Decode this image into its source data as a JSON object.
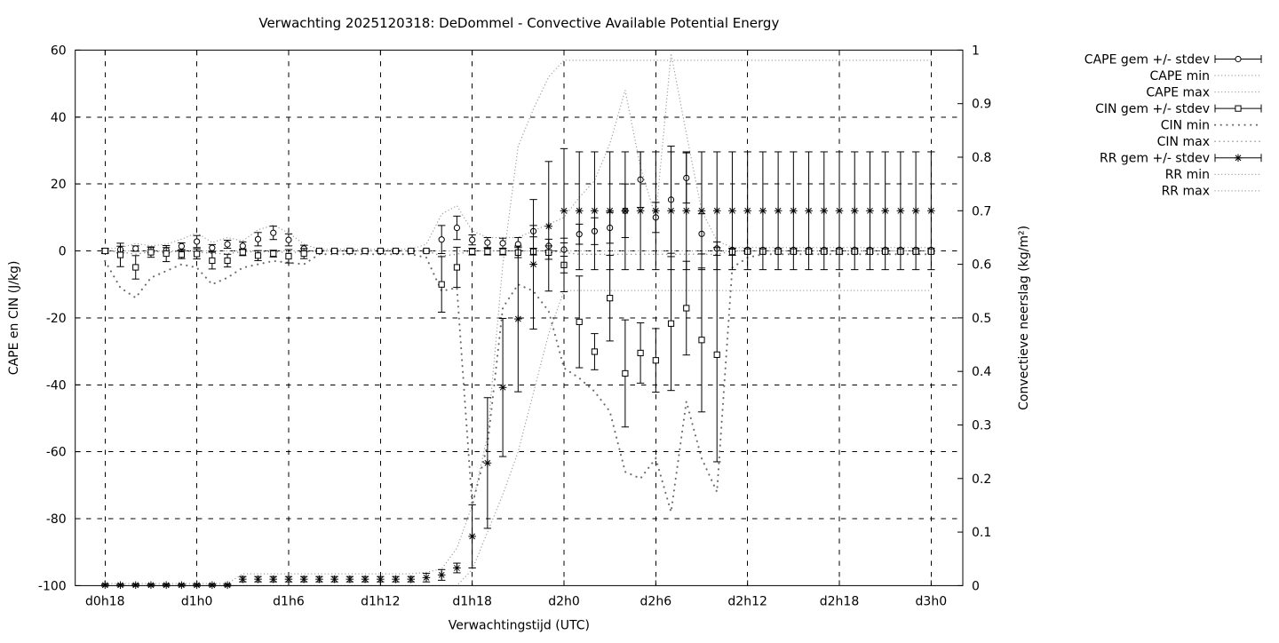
{
  "title": "Verwachting 2025120318: DeDommel - Convective Available Potential Energy",
  "chart_data": {
    "type": "line",
    "subtype": "errorbars-with-minmax-envelopes",
    "title": "Verwachting 2025120318: DeDommel - Convective Available Potential Energy",
    "xlabel": "Verwachtingstijd (UTC)",
    "ylabel_left": "CAPE en CIN (J/kg)",
    "ylabel_right": "Convectieve neerslag (kg/m²)",
    "x_tick_labels": [
      "d0h18",
      "d1h0",
      "d1h6",
      "d1h12",
      "d1h18",
      "d2h0",
      "d2h6",
      "d2h12",
      "d2h18",
      "d3h0"
    ],
    "x_tick_hours": [
      0,
      6,
      12,
      18,
      24,
      30,
      36,
      42,
      48,
      54
    ],
    "x_range_hours": [
      -1.95,
      56.07
    ],
    "ylim_left": [
      -100,
      60
    ],
    "ylim_right": [
      0,
      1
    ],
    "y_ticks_left": [
      "60",
      "40",
      "20",
      "0",
      "-20",
      "-40",
      "-60",
      "-80",
      "-100"
    ],
    "y_tick_values_left": [
      60,
      40,
      20,
      0,
      -20,
      -40,
      -60,
      -80,
      -100
    ],
    "y_ticks_right": [
      "1",
      "0.9",
      "0.8",
      "0.7",
      "0.6",
      "0.5",
      "0.4",
      "0.3",
      "0.2",
      "0.1",
      "0"
    ],
    "y_tick_values_right": [
      1,
      0.9,
      0.8,
      0.7,
      0.6,
      0.5,
      0.4,
      0.3,
      0.2,
      0.1,
      0
    ],
    "grid": true,
    "legend_position": "outside-right-top",
    "x_hours": [
      0,
      1,
      2,
      3,
      4,
      5,
      6,
      7,
      8,
      9,
      10,
      11,
      12,
      13,
      14,
      15,
      16,
      17,
      18,
      19,
      20,
      21,
      22,
      23,
      24,
      25,
      26,
      27,
      28,
      29,
      30,
      31,
      32,
      33,
      34,
      35,
      36,
      37,
      38,
      39,
      40,
      41,
      42,
      43,
      44,
      45,
      46,
      47,
      48,
      49,
      50,
      51,
      52,
      53,
      54
    ],
    "series": [
      {
        "name": "CAPE gem +/- stdev",
        "axis": "left",
        "style": "errorbar",
        "marker": "circle",
        "mean": [
          0.0,
          0.4,
          0.7,
          0.4,
          0.2,
          1.4,
          2.8,
          0.9,
          2.0,
          1.5,
          3.5,
          5.4,
          3.3,
          0.7,
          0.0,
          0.0,
          0.0,
          0.0,
          0.0,
          0.0,
          0.0,
          0.0,
          3.4,
          6.9,
          3.3,
          2.5,
          2.3,
          2.0,
          5.9,
          1.5,
          0.4,
          5.0,
          5.9,
          6.9,
          12.0,
          21.3,
          10.0,
          15.3,
          21.8,
          5.1,
          0.7,
          0.3,
          0.3,
          0.3,
          0.3,
          0.3,
          0.3,
          0.3,
          0.3,
          0.3,
          0.3,
          0.3,
          0.3,
          0.3,
          0.3
        ],
        "stdev": [
          0.5,
          1.0,
          0.8,
          0.8,
          0.8,
          1.0,
          1.8,
          1.0,
          1.2,
          1.2,
          2.0,
          2.0,
          1.8,
          1.0,
          0.2,
          0.2,
          0.2,
          0.2,
          0.2,
          0.2,
          0.2,
          0.3,
          4.2,
          3.5,
          1.5,
          1.5,
          1.5,
          2.0,
          1.7,
          2.0,
          2.0,
          3.0,
          4.0,
          4.6,
          8.0,
          8.3,
          4.5,
          16.0,
          7.5,
          6.0,
          2.0,
          0.5,
          0.5,
          0.5,
          0.5,
          0.5,
          0.5,
          0.5,
          0.5,
          0.5,
          0.5,
          0.5,
          0.5,
          0.5,
          0.5
        ]
      },
      {
        "name": "CAPE min",
        "axis": "left",
        "style": "dotted-fine",
        "values": [
          0,
          0,
          0,
          0,
          0,
          0,
          0,
          0,
          0,
          0,
          0,
          0,
          0,
          0,
          0,
          0,
          0,
          0,
          0,
          0,
          0,
          0,
          0,
          0,
          0,
          0,
          0,
          0,
          0,
          0,
          0,
          0,
          0,
          0,
          0,
          0,
          0,
          0,
          0,
          0,
          0,
          0,
          0,
          0,
          0,
          0,
          0,
          0,
          0,
          0,
          0,
          0,
          0,
          0,
          0
        ]
      },
      {
        "name": "CAPE max",
        "axis": "left",
        "style": "dotted-fine",
        "values": [
          0.5,
          1.0,
          2.2,
          1.5,
          2.0,
          3.5,
          5.4,
          2.5,
          4.0,
          3.0,
          6.3,
          7.7,
          5.4,
          2.0,
          0.5,
          0.5,
          0.5,
          0.5,
          0.5,
          0.5,
          0.5,
          2.0,
          11.0,
          13.5,
          6.0,
          4.0,
          4.0,
          4.0,
          6.0,
          8.0,
          10.0,
          16.0,
          21.0,
          32.0,
          48.0,
          25.0,
          10.0,
          59.0,
          35.0,
          12.0,
          3.0,
          1.0,
          1.0,
          1.0,
          1.0,
          1.0,
          1.0,
          1.0,
          1.0,
          1.0,
          1.0,
          1.0,
          1.0,
          1.0,
          1.0
        ]
      },
      {
        "name": "CIN gem +/- stdev",
        "axis": "left",
        "style": "errorbar",
        "marker": "square",
        "mean": [
          0.0,
          -1.2,
          -4.9,
          -0.4,
          -0.8,
          -1.1,
          -0.9,
          -2.9,
          -2.9,
          -0.4,
          -1.4,
          -0.8,
          -1.6,
          -0.8,
          0.0,
          0.0,
          0.0,
          0.0,
          0.0,
          0.0,
          0.0,
          0.0,
          -10.0,
          -4.9,
          -0.2,
          -0.2,
          -0.2,
          -0.5,
          -0.2,
          -0.5,
          -4.2,
          -21.2,
          -30.1,
          -14.1,
          -36.6,
          -30.5,
          -32.7,
          -21.7,
          -17.1,
          -26.6,
          -31.0,
          -0.3,
          -0.2,
          -0.2,
          -0.2,
          -0.2,
          -0.2,
          -0.2,
          -0.2,
          -0.2,
          -0.2,
          -0.2,
          -0.2,
          -0.2,
          -0.2
        ],
        "stdev": [
          0.8,
          3.5,
          3.5,
          1.5,
          2.4,
          1.2,
          1.5,
          2.5,
          1.9,
          1.0,
          1.5,
          1.0,
          2.0,
          1.5,
          0.2,
          0.2,
          0.2,
          0.2,
          0.2,
          0.2,
          0.2,
          0.3,
          8.3,
          6.0,
          1.0,
          1.0,
          1.0,
          1.5,
          1.0,
          2.0,
          8.0,
          13.7,
          5.4,
          12.8,
          16.0,
          9.0,
          9.5,
          20.0,
          14.0,
          21.5,
          32.0,
          1.0,
          0.5,
          0.5,
          0.5,
          0.5,
          0.5,
          0.5,
          0.5,
          0.5,
          0.5,
          0.5,
          0.5,
          0.5,
          0.5
        ]
      },
      {
        "name": "CIN min",
        "axis": "left",
        "style": "dotted-bold",
        "values": [
          -3,
          -11,
          -14,
          -8,
          -6,
          -4,
          -5,
          -10,
          -8,
          -5,
          -4,
          -3,
          -3.5,
          -4,
          -1,
          -1,
          -1,
          -1,
          -1,
          -1,
          -1,
          -2,
          -12,
          -11,
          -76,
          -58,
          -17,
          -10,
          -12,
          -18,
          -35,
          -38,
          -42,
          -48,
          -66,
          -68,
          -62,
          -78,
          -45,
          -62,
          -72,
          -5,
          -2,
          -1,
          -1,
          -1,
          -1,
          -1,
          -1,
          -1,
          -1,
          -1,
          -1,
          -1,
          -1
        ]
      },
      {
        "name": "CIN max",
        "axis": "left",
        "style": "dotted-med",
        "values": [
          0,
          -0.3,
          -1.0,
          -0.2,
          -0.3,
          -0.2,
          -0.2,
          -0.8,
          -0.8,
          -0.2,
          -0.3,
          -0.2,
          -0.5,
          -0.3,
          0,
          0,
          0,
          0,
          0,
          0,
          0,
          0,
          -1.5,
          -1.0,
          0,
          0,
          0,
          0,
          0,
          0,
          -0.5,
          -1,
          -1,
          -1,
          -1,
          -1,
          -1,
          -1,
          -1,
          -1,
          -1,
          0,
          0,
          0,
          0,
          0,
          0,
          0,
          0,
          0,
          0,
          0,
          0,
          0,
          0
        ]
      },
      {
        "name": "RR gem +/- stdev",
        "axis": "right",
        "style": "errorbar",
        "marker": "asterisk",
        "mean": [
          0.001,
          0.001,
          0.001,
          0.001,
          0.001,
          0.001,
          0.001,
          0.001,
          0.001,
          0.012,
          0.012,
          0.012,
          0.012,
          0.012,
          0.012,
          0.012,
          0.012,
          0.012,
          0.012,
          0.012,
          0.012,
          0.015,
          0.02,
          0.033,
          0.092,
          0.229,
          0.37,
          0.498,
          0.6,
          0.671,
          0.7,
          0.7,
          0.7,
          0.7,
          0.7,
          0.7,
          0.7,
          0.7,
          0.7,
          0.7,
          0.7,
          0.7,
          0.7,
          0.7,
          0.7,
          0.7,
          0.7,
          0.7,
          0.7,
          0.7,
          0.7,
          0.7,
          0.7,
          0.7,
          0.7
        ],
        "stdev": [
          0.002,
          0.002,
          0.002,
          0.002,
          0.002,
          0.002,
          0.002,
          0.002,
          0.002,
          0.005,
          0.005,
          0.005,
          0.005,
          0.005,
          0.005,
          0.005,
          0.005,
          0.005,
          0.005,
          0.005,
          0.005,
          0.008,
          0.01,
          0.009,
          0.059,
          0.122,
          0.129,
          0.136,
          0.121,
          0.121,
          0.116,
          0.11,
          0.11,
          0.11,
          0.11,
          0.11,
          0.11,
          0.11,
          0.11,
          0.11,
          0.11,
          0.11,
          0.11,
          0.11,
          0.11,
          0.11,
          0.11,
          0.11,
          0.11,
          0.11,
          0.11,
          0.11,
          0.11,
          0.11,
          0.11
        ]
      },
      {
        "name": "RR min",
        "axis": "right",
        "style": "dotted-fine",
        "values": [
          0,
          0,
          0,
          0,
          0,
          0,
          0,
          0,
          0,
          0,
          0,
          0,
          0,
          0,
          0,
          0,
          0,
          0,
          0,
          0,
          0,
          0,
          0,
          0,
          0.03,
          0.1,
          0.17,
          0.25,
          0.36,
          0.47,
          0.551,
          0.551,
          0.551,
          0.551,
          0.551,
          0.551,
          0.551,
          0.551,
          0.551,
          0.551,
          0.551,
          0.551,
          0.551,
          0.551,
          0.551,
          0.551,
          0.551,
          0.551,
          0.551,
          0.551,
          0.551,
          0.551,
          0.551,
          0.551,
          0.551
        ],
        "note": ""
      },
      {
        "name": "RR max",
        "axis": "right",
        "style": "dotted-fine",
        "values": [
          0.004,
          0.004,
          0.004,
          0.004,
          0.004,
          0.004,
          0.004,
          0.004,
          0.004,
          0.022,
          0.022,
          0.022,
          0.022,
          0.022,
          0.022,
          0.022,
          0.022,
          0.022,
          0.022,
          0.022,
          0.022,
          0.025,
          0.031,
          0.07,
          0.15,
          0.28,
          0.6,
          0.82,
          0.89,
          0.95,
          0.981,
          0.981,
          0.981,
          0.981,
          0.981,
          0.981,
          0.981,
          0.981,
          0.981,
          0.981,
          0.981,
          0.981,
          0.981,
          0.981,
          0.981,
          0.981,
          0.981,
          0.981,
          0.981,
          0.981,
          0.981,
          0.981,
          0.981,
          0.981,
          0.981
        ]
      }
    ],
    "colors": {
      "foreground": "#000000",
      "background": "#ffffff",
      "dotted_fine": "#9a9a9a",
      "dotted_bold": "#6b6b6b",
      "dotted_med": "#8a8a8a"
    }
  }
}
